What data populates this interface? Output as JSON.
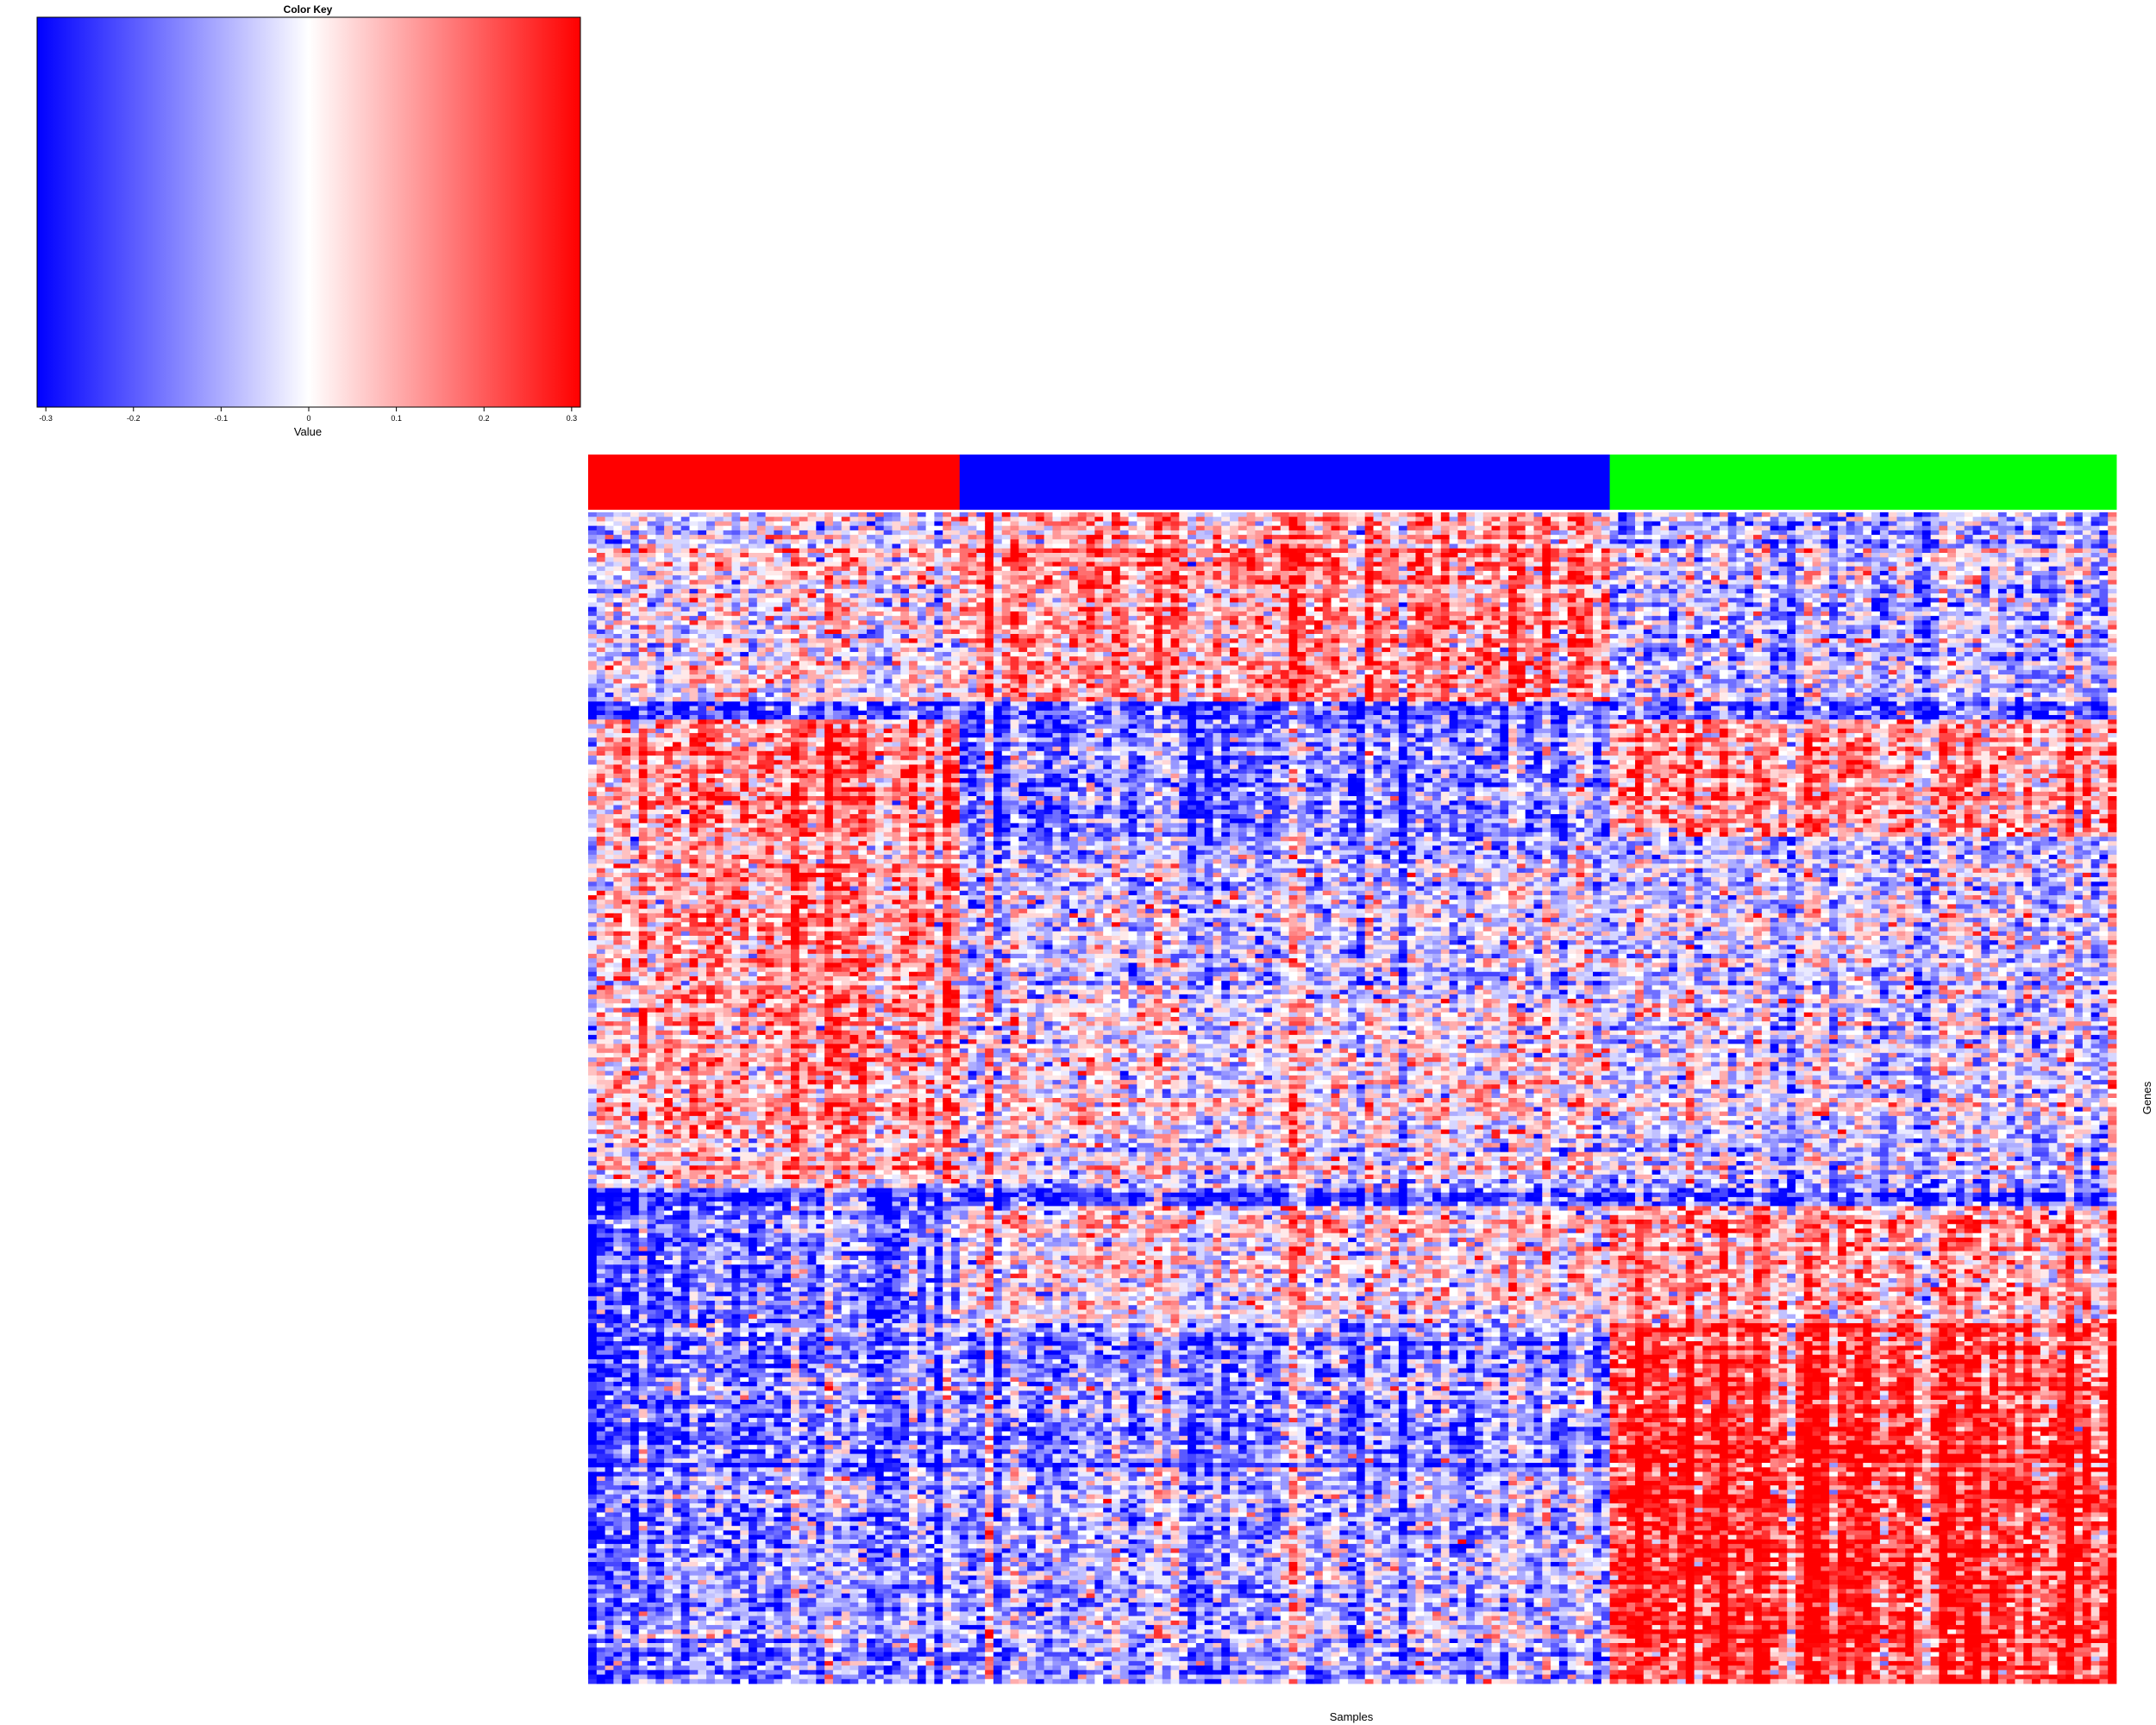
{
  "chart_data": {
    "type": "heatmap",
    "color_key": {
      "title": "Color Key",
      "xlabel": "Value",
      "range": [
        -0.31,
        0.31
      ],
      "ticks": [
        "-0.3",
        "-0.2",
        "-0.1",
        "0",
        "0.1",
        "0.2",
        "0.3"
      ],
      "tick_values": [
        -0.3,
        -0.2,
        -0.1,
        0,
        0.1,
        0.2,
        0.3
      ],
      "colors": [
        "#0000ff",
        "#ffffff",
        "#ff0000"
      ]
    },
    "xlabel": "Samples",
    "ylabel": "Genes",
    "sample_groups": [
      {
        "color": "#ff0000",
        "count": 44
      },
      {
        "color": "#0000ff",
        "count": 77
      },
      {
        "color": "#00ff00",
        "count": 60
      }
    ],
    "matrix": {
      "n_samples": 181,
      "n_genes": 260,
      "gene_blocks": [
        {
          "genes": 42,
          "group_means": [
            0.02,
            0.12,
            -0.08
          ]
        },
        {
          "genes": 4,
          "group_means": [
            -0.2,
            -0.2,
            -0.2
          ]
        },
        {
          "genes": 26,
          "group_means": [
            0.16,
            -0.15,
            0.12
          ]
        },
        {
          "genes": 36,
          "group_means": [
            0.14,
            -0.05,
            -0.04
          ]
        },
        {
          "genes": 42,
          "group_means": [
            0.12,
            0.0,
            -0.05
          ]
        },
        {
          "genes": 4,
          "group_means": [
            -0.22,
            -0.22,
            -0.22
          ]
        },
        {
          "genes": 26,
          "group_means": [
            -0.15,
            0.02,
            0.1
          ]
        },
        {
          "genes": 22,
          "group_means": [
            -0.12,
            -0.12,
            0.24
          ]
        },
        {
          "genes": 10,
          "group_means": [
            -0.18,
            -0.18,
            0.26
          ]
        },
        {
          "genes": 48,
          "group_means": [
            -0.12,
            -0.1,
            0.24
          ]
        }
      ]
    }
  }
}
